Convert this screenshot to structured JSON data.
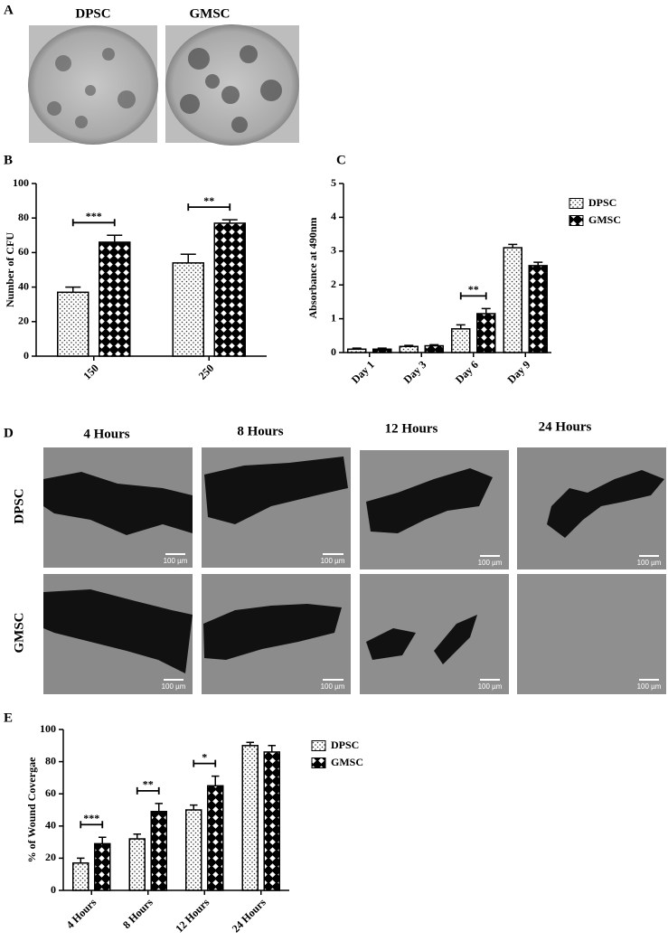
{
  "panel_labels": [
    "A",
    "B",
    "C",
    "D",
    "E"
  ],
  "colony_images": {
    "labels": [
      "DPSC",
      "GMSC"
    ]
  },
  "wound_images": {
    "columns": [
      "4 Hours",
      "8 Hours",
      "12 Hours",
      "24 Hours"
    ],
    "rows": [
      "DPSC",
      "GMSC"
    ],
    "scale_bar": "100 µm"
  },
  "chart_data": [
    {
      "type": "bar",
      "ylabel": "Number of CFU",
      "categories": [
        "150",
        "250"
      ],
      "series": [
        {
          "pattern": "dots",
          "color": "#ffffff",
          "values": [
            37,
            54
          ],
          "errors": [
            3,
            5
          ]
        },
        {
          "pattern": "crosshatch",
          "color": "#000000",
          "values": [
            66,
            77
          ],
          "errors": [
            4,
            2
          ]
        }
      ],
      "ylim": [
        0,
        100
      ],
      "yticks": [
        0,
        20,
        40,
        60,
        80,
        100
      ],
      "annotations": [
        {
          "text": "***",
          "category": "150"
        },
        {
          "text": "**",
          "category": "250"
        }
      ]
    },
    {
      "type": "bar",
      "ylabel": "Absorbance at 490nm",
      "categories": [
        "Day 1",
        "Day 3",
        "Day 6",
        "Day 9"
      ],
      "series": [
        {
          "name": "DPSC",
          "pattern": "dots",
          "color": "#ffffff",
          "values": [
            0.1,
            0.18,
            0.7,
            3.1
          ],
          "errors": [
            0.03,
            0.03,
            0.12,
            0.1
          ]
        },
        {
          "name": "GMSC",
          "pattern": "crosshatch",
          "color": "#000000",
          "values": [
            0.1,
            0.2,
            1.15,
            2.57
          ],
          "errors": [
            0.03,
            0.03,
            0.15,
            0.1
          ]
        }
      ],
      "ylim": [
        0,
        5
      ],
      "yticks": [
        0,
        1,
        2,
        3,
        4,
        5
      ],
      "legend": "right",
      "annotations": [
        {
          "text": "**",
          "category": "Day 6"
        }
      ]
    },
    {
      "type": "bar",
      "ylabel": "% of Wound Covergae",
      "categories": [
        "4 Hours",
        "8 Hours",
        "12 Hours",
        "24 Hours"
      ],
      "series": [
        {
          "name": "DPSC",
          "pattern": "dots",
          "color": "#ffffff",
          "values": [
            17,
            32,
            50,
            90
          ],
          "errors": [
            3,
            3,
            3,
            2
          ]
        },
        {
          "name": "GMSC",
          "pattern": "crosshatch",
          "color": "#000000",
          "values": [
            29,
            49,
            65,
            86
          ],
          "errors": [
            4,
            5,
            6,
            4
          ]
        }
      ],
      "ylim": [
        0,
        100
      ],
      "yticks": [
        0,
        20,
        40,
        60,
        80,
        100
      ],
      "legend": "right",
      "annotations": [
        {
          "text": "***",
          "category": "4 Hours"
        },
        {
          "text": "**",
          "category": "8 Hours"
        },
        {
          "text": "*",
          "category": "12 Hours"
        }
      ]
    }
  ]
}
